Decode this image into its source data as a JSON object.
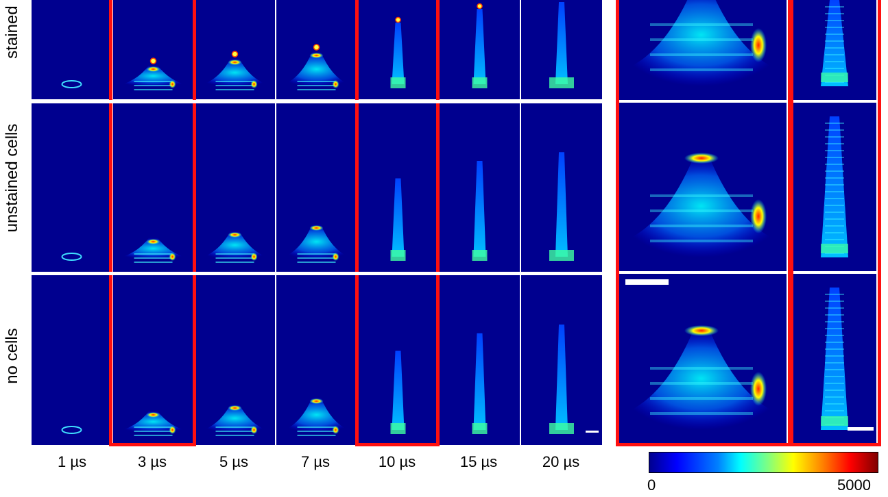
{
  "rows": [
    {
      "label": "stained"
    },
    {
      "label": "unstained cells"
    },
    {
      "label": "no cells"
    }
  ],
  "columns": [
    {
      "label": "1 µs"
    },
    {
      "label": "3 µs"
    },
    {
      "label": "5 µs"
    },
    {
      "label": "7 µs"
    },
    {
      "label": "10 µs"
    },
    {
      "label": "15 µs"
    },
    {
      "label": "20 µs"
    }
  ],
  "colorbar": {
    "min_label": "0",
    "max_label": "5000",
    "colormap": "jet"
  },
  "colors": {
    "background": "#00008f",
    "highlight_frame": "#ff1010",
    "separator": "#ffffff"
  }
}
